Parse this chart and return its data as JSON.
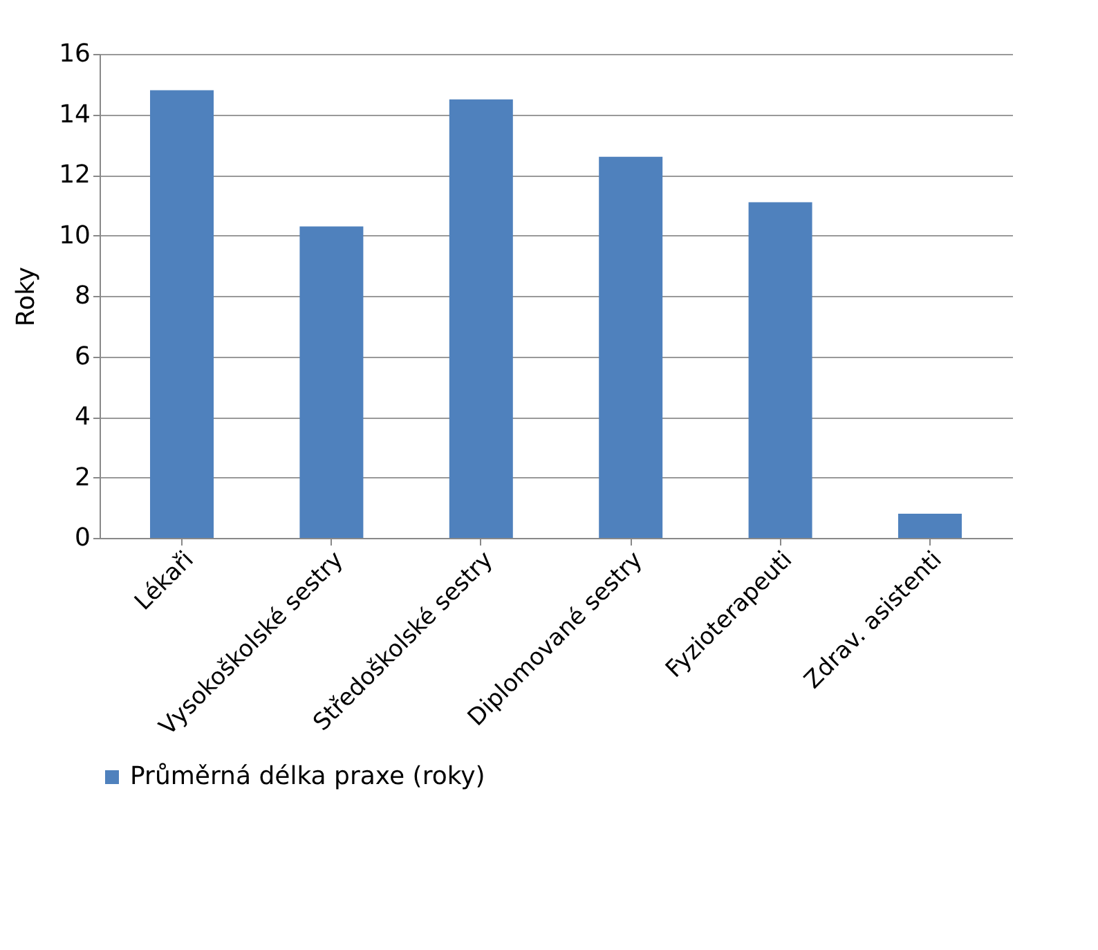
{
  "chart_data": {
    "type": "bar",
    "ylabel": "Roky",
    "categories": [
      "Lékaři",
      "Vysokoškolské sestry",
      "Středoškolské sestry",
      "Diplomované sestry",
      "Fyzioterapeuti",
      "Zdrav. asistenti"
    ],
    "series": [
      {
        "name": "Průměrná délka praxe (roky)",
        "color": "#4f81bd",
        "values": [
          14.8,
          10.3,
          14.5,
          12.6,
          11.1,
          0.8
        ]
      }
    ],
    "ylim": [
      0,
      16
    ],
    "yticks": [
      0,
      2,
      4,
      6,
      8,
      10,
      12,
      14,
      16
    ],
    "grid": "y",
    "legend": "bottom"
  }
}
